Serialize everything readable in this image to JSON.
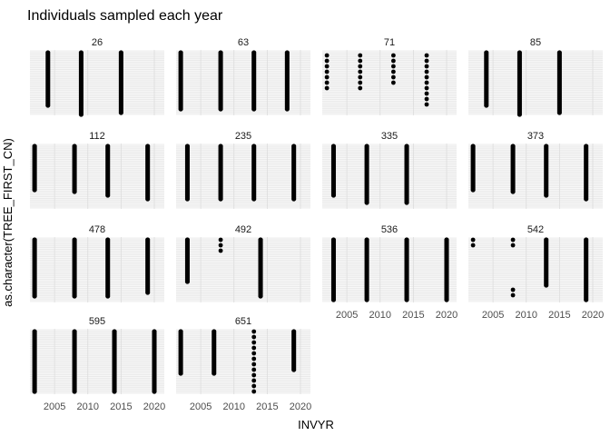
{
  "chart_data": {
    "type": "scatter",
    "title": "Individuals sampled each year",
    "xlabel": "INVYR",
    "ylabel": "as.character(TREE_FIRST_CN)",
    "x_ticks": [
      "2005",
      "2010",
      "2015",
      "2020"
    ],
    "xlim": [
      2001.3,
      2021.5
    ],
    "grid": true,
    "y_tick_labels": "not shown",
    "panels": [
      {
        "label": "26",
        "points": [
          {
            "x": 2004,
            "n": 30
          },
          {
            "x": 2009,
            "n": 36
          },
          {
            "x": 2015,
            "n": 34
          }
        ]
      },
      {
        "label": "63",
        "points": [
          {
            "x": 2002,
            "n": 32
          },
          {
            "x": 2008,
            "n": 32
          },
          {
            "x": 2013,
            "n": 32
          },
          {
            "x": 2018,
            "n": 32
          }
        ]
      },
      {
        "label": "71",
        "points": [
          {
            "x": 2002,
            "n": 7
          },
          {
            "x": 2007,
            "n": 7
          },
          {
            "x": 2012,
            "n": 6
          },
          {
            "x": 2017,
            "n": 10
          }
        ]
      },
      {
        "label": "85",
        "points": [
          {
            "x": 2004,
            "n": 30
          },
          {
            "x": 2009,
            "n": 36
          },
          {
            "x": 2015,
            "n": 34
          }
        ]
      },
      {
        "label": "112",
        "points": [
          {
            "x": 2002,
            "n": 25
          },
          {
            "x": 2008,
            "n": 26
          },
          {
            "x": 2013,
            "n": 28
          },
          {
            "x": 2019,
            "n": 30
          }
        ]
      },
      {
        "label": "235",
        "points": [
          {
            "x": 2003,
            "n": 30
          },
          {
            "x": 2008,
            "n": 30
          },
          {
            "x": 2013,
            "n": 30
          },
          {
            "x": 2019,
            "n": 30
          }
        ]
      },
      {
        "label": "335",
        "points": [
          {
            "x": 2003,
            "n": 28
          },
          {
            "x": 2008,
            "n": 32
          },
          {
            "x": 2014,
            "n": 32
          }
        ]
      },
      {
        "label": "373",
        "points": [
          {
            "x": 2002,
            "n": 25
          },
          {
            "x": 2008,
            "n": 26
          },
          {
            "x": 2013,
            "n": 28
          },
          {
            "x": 2019,
            "n": 30
          }
        ]
      },
      {
        "label": "478",
        "points": [
          {
            "x": 2002,
            "n": 32
          },
          {
            "x": 2008,
            "n": 32
          },
          {
            "x": 2013,
            "n": 32
          },
          {
            "x": 2019,
            "n": 30
          }
        ]
      },
      {
        "label": "492",
        "points": [
          {
            "x": 2003,
            "n": 24
          },
          {
            "x": 2008,
            "n": 3
          },
          {
            "x": 2014,
            "n": 32
          }
        ]
      },
      {
        "label": "536",
        "points": [
          {
            "x": 2003,
            "n": 34
          },
          {
            "x": 2008,
            "n": 34
          },
          {
            "x": 2014,
            "n": 34
          },
          {
            "x": 2020,
            "n": 34
          }
        ]
      },
      {
        "label": "542",
        "points": [
          {
            "x": 2002,
            "n": 2
          },
          {
            "x": 2008,
            "n": 2
          },
          {
            "x": 2008,
            "n": 2,
            "low": true
          },
          {
            "x": 2013,
            "n": 26
          },
          {
            "x": 2019,
            "n": 34
          }
        ]
      },
      {
        "label": "595",
        "points": [
          {
            "x": 2002,
            "n": 34
          },
          {
            "x": 2008,
            "n": 34
          },
          {
            "x": 2014,
            "n": 34
          },
          {
            "x": 2020,
            "n": 34
          }
        ]
      },
      {
        "label": "651",
        "points": [
          {
            "x": 2002,
            "n": 24
          },
          {
            "x": 2007,
            "n": 24
          },
          {
            "x": 2013,
            "n": 18
          },
          {
            "x": 2019,
            "n": 22
          }
        ]
      }
    ]
  }
}
